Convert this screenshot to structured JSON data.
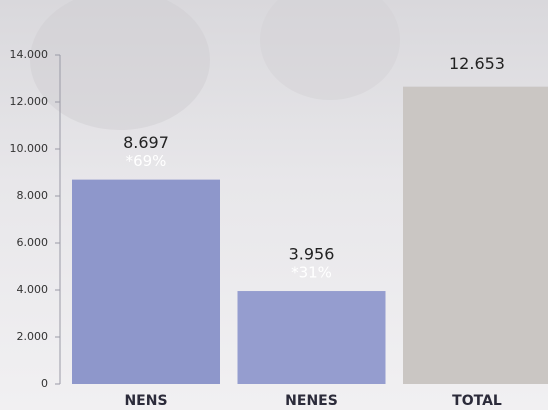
{
  "chart_data": {
    "type": "bar",
    "categories": [
      "NENS",
      "NENES",
      "TOTAL"
    ],
    "values": [
      8697,
      3956,
      12653
    ],
    "value_labels": [
      "8.697",
      "3.956",
      "12.653"
    ],
    "share_labels": [
      "*69%",
      "*31%",
      null
    ],
    "colors": [
      "#8e97cb",
      "#959dcf",
      "#cac6c3"
    ],
    "ylim": [
      0,
      14000
    ],
    "yticks": [
      0,
      {
        "value": 2000,
        "label": "2.000"
      },
      {
        "value": 4000,
        "label": "4.000"
      },
      {
        "value": 6000,
        "label": "6.000"
      },
      {
        "value": 8000,
        "label": "8.000"
      },
      {
        "value": 10000,
        "label": "10.000"
      },
      {
        "value": 12000,
        "label": "12.000"
      },
      {
        "value": 14000,
        "label": "14.000"
      }
    ],
    "grid": false
  }
}
